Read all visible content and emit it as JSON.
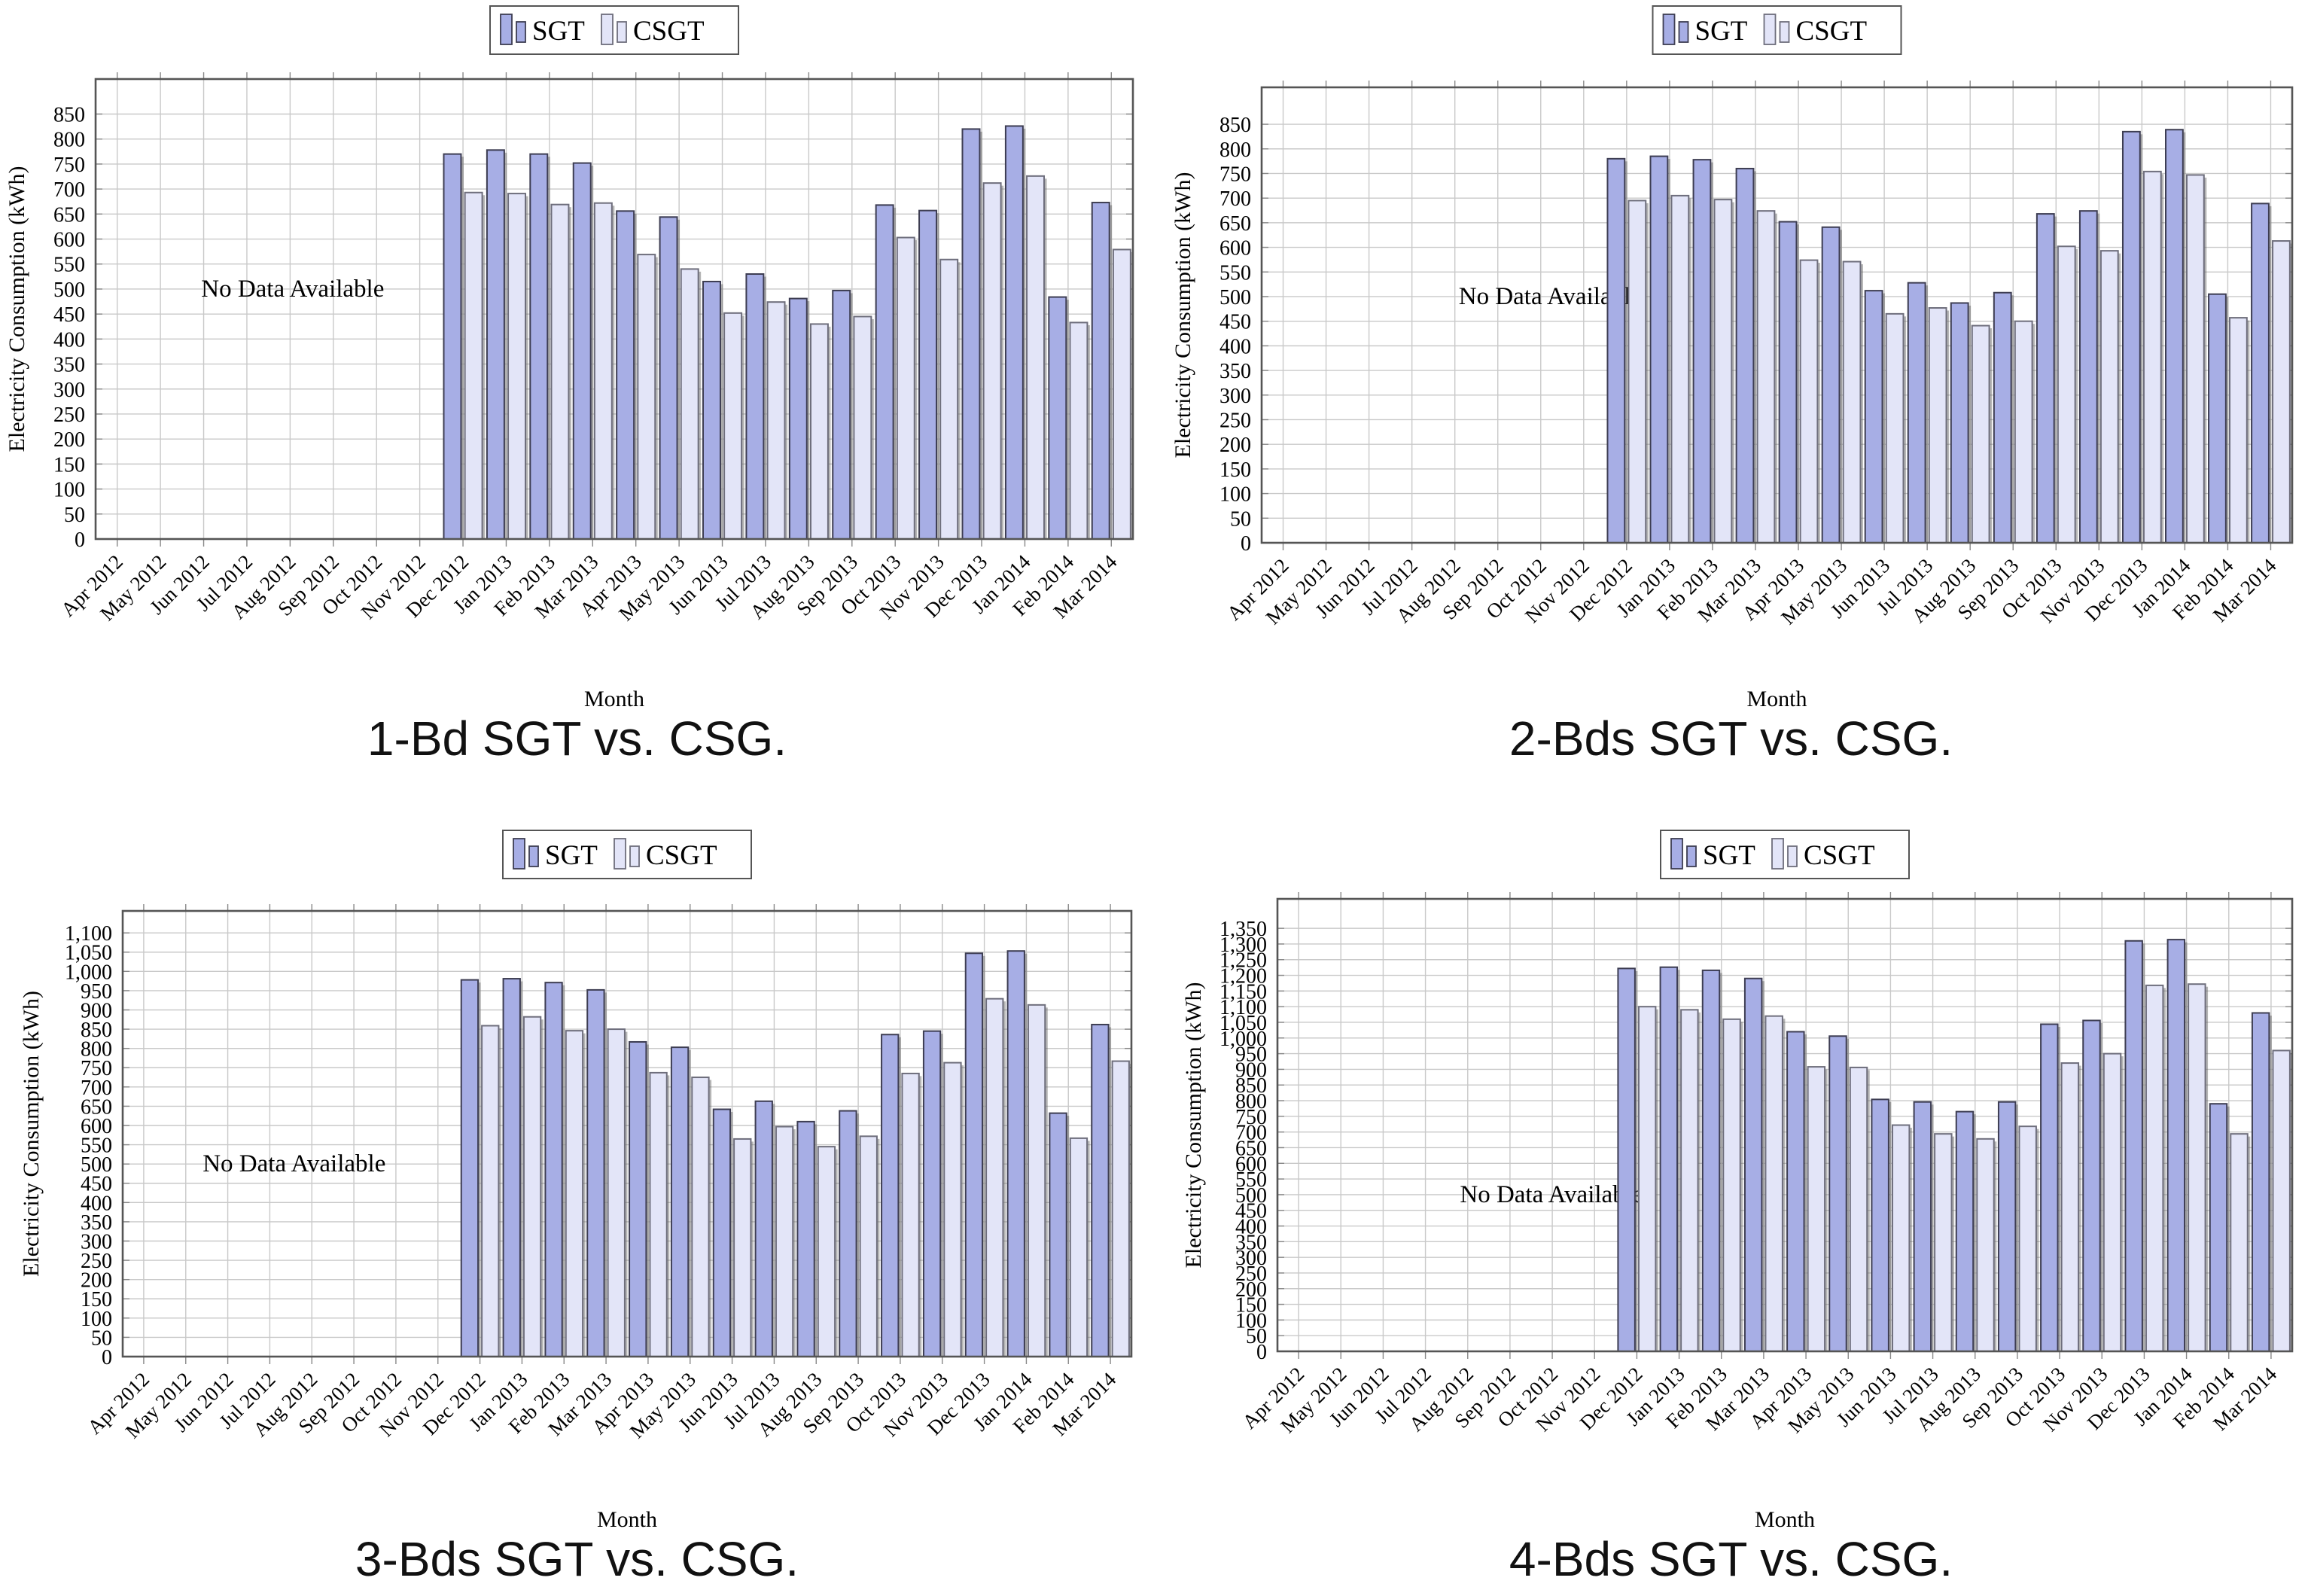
{
  "axis_titles": {
    "y": "Electricity Consumption (kWh)",
    "x": "Month"
  },
  "no_data_text": "No Data Available",
  "legend": {
    "items": [
      {
        "label": "SGT"
      },
      {
        "label": "CSGT"
      }
    ]
  },
  "colors": {
    "sgt_fill": "#a7aee5",
    "sgt_border": "#3d3d52",
    "csgt_fill": "#e3e5f8",
    "csgt_border": "#6e6e7c",
    "grid": "#c9c9c9",
    "axis": "#555555",
    "tick": "#888888",
    "shadow": "rgba(90,90,90,0.45)",
    "text": "#000000"
  },
  "chart_data": [
    {
      "type": "bar",
      "title": "1-Bd SGT vs. CSG.",
      "xlabel": "Month",
      "ylabel": "Electricity Consumption (kWh)",
      "ytick_step": 50,
      "ytick_max": 850,
      "ylim": [
        0,
        920
      ],
      "grid": true,
      "legend_position": "top center",
      "annotation": "No Data Available",
      "categories": [
        "Apr 2012",
        "May 2012",
        "Jun 2012",
        "Jul 2012",
        "Aug 2012",
        "Sep 2012",
        "Oct 2012",
        "Nov 2012",
        "Dec 2012",
        "Jan 2013",
        "Feb 2013",
        "Mar 2013",
        "Apr 2013",
        "May 2013",
        "Jun 2013",
        "Jul 2013",
        "Aug 2013",
        "Sep 2013",
        "Oct 2013",
        "Nov 2013",
        "Dec 2013",
        "Jan 2014",
        "Feb 2014",
        "Mar 2014"
      ],
      "series": [
        {
          "name": "SGT",
          "values": [
            null,
            null,
            null,
            null,
            null,
            null,
            null,
            null,
            770,
            778,
            770,
            752,
            656,
            644,
            515,
            530,
            481,
            497,
            668,
            657,
            820,
            826,
            484,
            673
          ]
        },
        {
          "name": "CSGT",
          "values": [
            null,
            null,
            null,
            null,
            null,
            null,
            null,
            null,
            693,
            691,
            669,
            672,
            569,
            540,
            452,
            474,
            430,
            445,
            603,
            559,
            712,
            726,
            433,
            579
          ]
        }
      ]
    },
    {
      "type": "bar",
      "title": "2-Bds SGT vs. CSG.",
      "xlabel": "Month",
      "ylabel": "Electricity Consumption (kWh)",
      "ytick_step": 50,
      "ytick_max": 850,
      "ylim": [
        0,
        925
      ],
      "grid": true,
      "legend_position": "top center",
      "annotation": "No Data Available",
      "categories": [
        "Apr 2012",
        "May 2012",
        "Jun 2012",
        "Jul 2012",
        "Aug 2012",
        "Sep 2012",
        "Oct 2012",
        "Nov 2012",
        "Dec 2012",
        "Jan 2013",
        "Feb 2013",
        "Mar 2013",
        "Apr 2013",
        "May 2013",
        "Jun 2013",
        "Jul 2013",
        "Aug 2013",
        "Sep 2013",
        "Oct 2013",
        "Nov 2013",
        "Dec 2013",
        "Jan 2014",
        "Feb 2014",
        "Mar 2014"
      ],
      "series": [
        {
          "name": "SGT",
          "values": [
            null,
            null,
            null,
            null,
            null,
            null,
            null,
            null,
            780,
            785,
            778,
            760,
            652,
            641,
            512,
            528,
            487,
            508,
            668,
            674,
            835,
            839,
            505,
            689
          ]
        },
        {
          "name": "CSGT",
          "values": [
            null,
            null,
            null,
            null,
            null,
            null,
            null,
            null,
            695,
            705,
            697,
            674,
            574,
            571,
            465,
            477,
            441,
            450,
            602,
            593,
            754,
            747,
            457,
            613
          ]
        }
      ]
    },
    {
      "type": "bar",
      "title": "3-Bds SGT vs. CSG.",
      "xlabel": "Month",
      "ylabel": "Electricity Consumption (kWh)",
      "ytick_step": 50,
      "ytick_max": 1100,
      "ylim": [
        0,
        1157
      ],
      "grid": true,
      "legend_position": "top center",
      "annotation": "No Data Available",
      "categories": [
        "Apr 2012",
        "May 2012",
        "Jun 2012",
        "Jul 2012",
        "Aug 2012",
        "Sep 2012",
        "Oct 2012",
        "Nov 2012",
        "Dec 2012",
        "Jan 2013",
        "Feb 2013",
        "Mar 2013",
        "Apr 2013",
        "May 2013",
        "Jun 2013",
        "Jul 2013",
        "Aug 2013",
        "Sep 2013",
        "Oct 2013",
        "Nov 2013",
        "Dec 2013",
        "Jan 2014",
        "Feb 2014",
        "Mar 2014"
      ],
      "series": [
        {
          "name": "SGT",
          "values": [
            null,
            null,
            null,
            null,
            null,
            null,
            null,
            null,
            978,
            981,
            971,
            952,
            817,
            803,
            642,
            663,
            610,
            638,
            836,
            845,
            1047,
            1053,
            632,
            862
          ]
        },
        {
          "name": "CSGT",
          "values": [
            null,
            null,
            null,
            null,
            null,
            null,
            null,
            null,
            859,
            882,
            846,
            850,
            737,
            725,
            565,
            597,
            545,
            572,
            735,
            763,
            929,
            913,
            567,
            767
          ]
        }
      ]
    },
    {
      "type": "bar",
      "title": "4-Bds SGT vs. CSG.",
      "xlabel": "Month",
      "ylabel": "Electricity Consumption (kWh)",
      "ytick_step": 50,
      "ytick_max": 1350,
      "ylim": [
        0,
        1444
      ],
      "grid": true,
      "legend_position": "top center",
      "annotation": "No Data Available",
      "categories": [
        "Apr 2012",
        "May 2012",
        "Jun 2012",
        "Jul 2012",
        "Aug 2012",
        "Sep 2012",
        "Oct 2012",
        "Nov 2012",
        "Dec 2012",
        "Jan 2013",
        "Feb 2013",
        "Mar 2013",
        "Apr 2013",
        "May 2013",
        "Jun 2013",
        "Jul 2013",
        "Aug 2013",
        "Sep 2013",
        "Oct 2013",
        "Nov 2013",
        "Dec 2013",
        "Jan 2014",
        "Feb 2014",
        "Mar 2014"
      ],
      "series": [
        {
          "name": "SGT",
          "values": [
            null,
            null,
            null,
            null,
            null,
            null,
            null,
            null,
            1222,
            1226,
            1216,
            1190,
            1020,
            1006,
            804,
            796,
            765,
            796,
            1044,
            1056,
            1310,
            1314,
            790,
            1080
          ]
        },
        {
          "name": "CSGT",
          "values": [
            null,
            null,
            null,
            null,
            null,
            null,
            null,
            null,
            1100,
            1090,
            1060,
            1070,
            908,
            906,
            722,
            694,
            678,
            718,
            920,
            950,
            1168,
            1172,
            694,
            960
          ]
        }
      ]
    }
  ]
}
